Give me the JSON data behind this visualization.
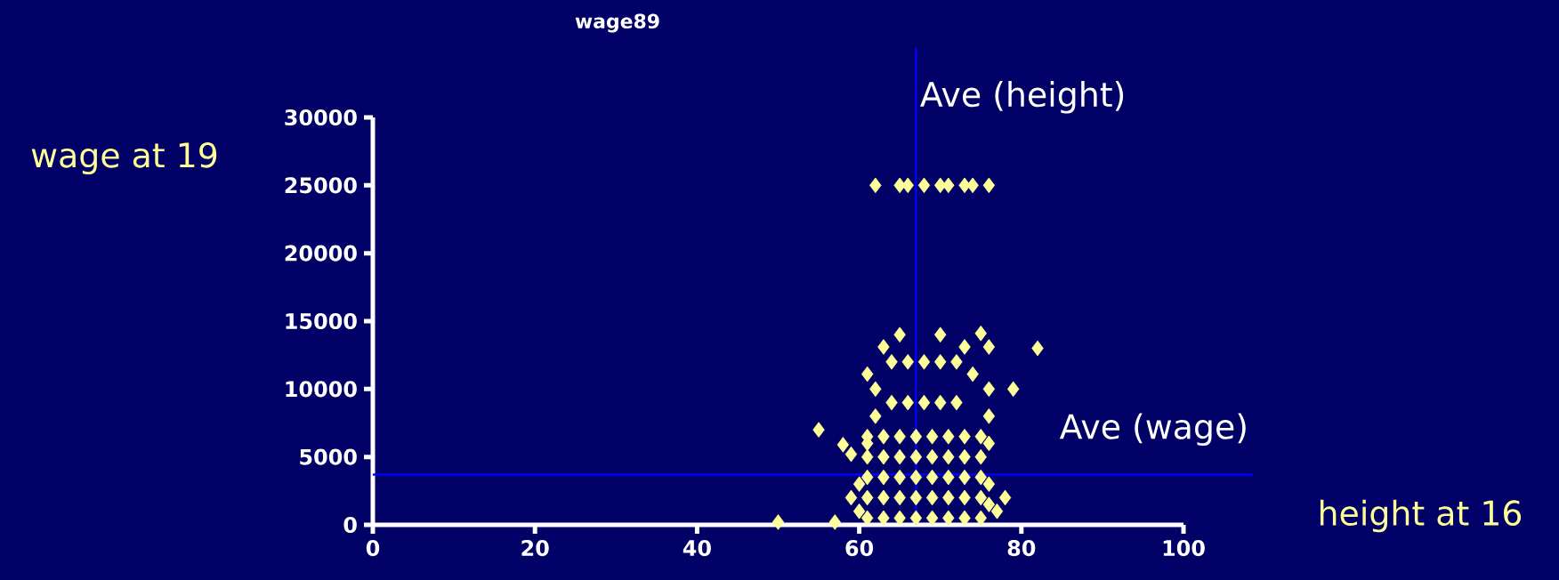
{
  "chart_data": {
    "type": "scatter",
    "title": "wage89",
    "xlabel": "height at 16",
    "ylabel": "wage at 19",
    "xlim": [
      0,
      100
    ],
    "xticks": [
      0,
      20,
      40,
      60,
      80,
      100
    ],
    "ylim": [
      0,
      30000
    ],
    "yticks": [
      0,
      5000,
      10000,
      15000,
      20000,
      25000,
      30000
    ],
    "marker": "diamond",
    "grid": false,
    "legend": false,
    "ref_lines": [
      {
        "axis": "x",
        "value": 67,
        "label": "Ave (height)",
        "color": "#0000ff"
      },
      {
        "axis": "y",
        "value": 3700,
        "label": "Ave (wage)",
        "color": "#0000ff"
      }
    ],
    "series": [
      {
        "color": "#ffff99",
        "x": [
          50,
          55,
          58,
          59,
          57,
          59,
          82,
          79,
          78,
          61,
          63,
          65,
          70,
          75,
          73,
          76,
          74,
          62,
          76,
          62,
          76,
          61,
          76,
          62,
          65,
          66,
          68,
          70,
          71,
          73,
          74,
          76,
          61,
          61,
          61,
          61,
          61,
          63,
          63,
          63,
          63,
          63,
          65,
          65,
          65,
          65,
          65,
          67,
          67,
          67,
          67,
          67,
          69,
          69,
          69,
          69,
          69,
          71,
          71,
          71,
          71,
          71,
          73,
          73,
          73,
          73,
          73,
          75,
          75,
          75,
          75,
          75,
          64,
          66,
          68,
          70,
          72,
          64,
          66,
          68,
          70,
          72,
          60,
          60,
          76,
          77,
          76
        ],
        "values": [
          200,
          7000,
          5900,
          5200,
          200,
          2000,
          13000,
          10000,
          2000,
          11100,
          13100,
          14000,
          14000,
          14100,
          13100,
          13100,
          11100,
          10000,
          10000,
          8000,
          8000,
          6000,
          6000,
          25000,
          25000,
          25000,
          25000,
          25000,
          25000,
          25000,
          25000,
          25000,
          500,
          2000,
          3500,
          5000,
          6500,
          500,
          2000,
          3500,
          5000,
          6500,
          500,
          2000,
          3500,
          5000,
          6500,
          500,
          2000,
          3500,
          5000,
          6500,
          500,
          2000,
          3500,
          5000,
          6500,
          500,
          2000,
          3500,
          5000,
          6500,
          500,
          2000,
          3500,
          5000,
          6500,
          500,
          2000,
          3500,
          5000,
          6500,
          9000,
          9000,
          9000,
          9000,
          9000,
          12000,
          12000,
          12000,
          12000,
          12000,
          1000,
          3000,
          3000,
          1000,
          1500
        ]
      }
    ]
  }
}
